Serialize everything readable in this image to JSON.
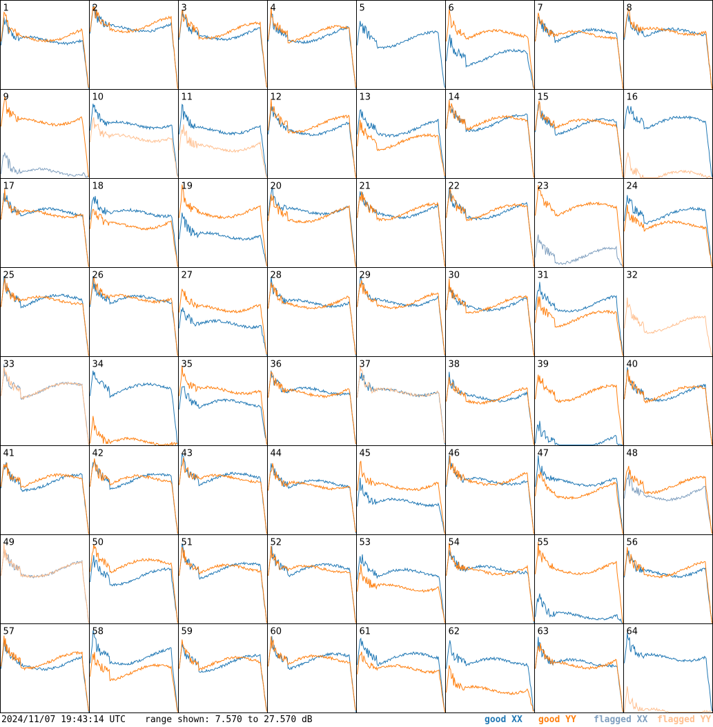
{
  "footer": {
    "timestamp": "2024/11/07 19:43:14 UTC",
    "range": "range shown: 7.570 to 27.570 dB"
  },
  "legend": {
    "good_xx": "good XX",
    "good_yy": "good YY",
    "flagged_xx": "flagged XX",
    "flagged_yy": "flagged YY"
  },
  "colors": {
    "good_xx": "#1f77b4",
    "good_yy": "#ff7f0e",
    "flagged_xx": "#7f9fbf",
    "flagged_yy": "#ffbf8f"
  },
  "chart_data": {
    "type": "line",
    "ylim": [
      7.57,
      27.57
    ],
    "ylabel": "dB",
    "grid_layout": "8x8",
    "series_names": [
      "good XX",
      "good YY",
      "flagged XX",
      "flagged YY"
    ],
    "panels": [
      {
        "id": "1",
        "xx": "good",
        "yy": "good",
        "xx_level": 0.55,
        "yy_level": 0.6
      },
      {
        "id": "2",
        "xx": "good",
        "yy": "good",
        "xx_level": 0.7,
        "yy_level": 0.72
      },
      {
        "id": "3",
        "xx": "good",
        "yy": "good",
        "xx_level": 0.62,
        "yy_level": 0.65
      },
      {
        "id": "4",
        "xx": "good",
        "yy": "good",
        "xx_level": 0.6,
        "yy_level": 0.62
      },
      {
        "id": "5",
        "xx": "good",
        "yy": "none",
        "xx_level": 0.55,
        "yy_level": 0
      },
      {
        "id": "6",
        "xx": "good",
        "yy": "good",
        "xx_level": 0.35,
        "yy_level": 0.6
      },
      {
        "id": "7",
        "xx": "good",
        "yy": "good",
        "xx_level": 0.6,
        "yy_level": 0.6
      },
      {
        "id": "8",
        "xx": "good",
        "yy": "good",
        "xx_level": 0.62,
        "yy_level": 0.65
      },
      {
        "id": "9",
        "xx": "flagged",
        "yy": "good",
        "xx_level": 0.05,
        "yy_level": 0.65
      },
      {
        "id": "10",
        "xx": "good",
        "yy": "flagged",
        "xx_level": 0.6,
        "yy_level": 0.45
      },
      {
        "id": "11",
        "xx": "good",
        "yy": "flagged",
        "xx_level": 0.55,
        "yy_level": 0.35
      },
      {
        "id": "12",
        "xx": "good",
        "yy": "good",
        "xx_level": 0.55,
        "yy_level": 0.6
      },
      {
        "id": "13",
        "xx": "good",
        "yy": "good",
        "xx_level": 0.55,
        "yy_level": 0.4
      },
      {
        "id": "14",
        "xx": "good",
        "yy": "good",
        "xx_level": 0.62,
        "yy_level": 0.62
      },
      {
        "id": "15",
        "xx": "good",
        "yy": "good",
        "xx_level": 0.58,
        "yy_level": 0.6
      },
      {
        "id": "16",
        "xx": "good",
        "yy": "flagged",
        "xx_level": 0.62,
        "yy_level": 0.0
      },
      {
        "id": "17",
        "xx": "good",
        "yy": "good",
        "xx_level": 0.6,
        "yy_level": 0.6
      },
      {
        "id": "18",
        "xx": "good",
        "yy": "good",
        "xx_level": 0.6,
        "yy_level": 0.48
      },
      {
        "id": "19",
        "xx": "good",
        "yy": "good",
        "xx_level": 0.35,
        "yy_level": 0.62
      },
      {
        "id": "20",
        "xx": "good",
        "yy": "good",
        "xx_level": 0.65,
        "yy_level": 0.58
      },
      {
        "id": "21",
        "xx": "good",
        "yy": "good",
        "xx_level": 0.62,
        "yy_level": 0.62
      },
      {
        "id": "22",
        "xx": "good",
        "yy": "good",
        "xx_level": 0.62,
        "yy_level": 0.62
      },
      {
        "id": "23",
        "xx": "flagged",
        "yy": "good",
        "xx_level": 0.12,
        "yy_level": 0.65
      },
      {
        "id": "24",
        "xx": "good",
        "yy": "good",
        "xx_level": 0.58,
        "yy_level": 0.45
      },
      {
        "id": "25",
        "xx": "good",
        "yy": "good",
        "xx_level": 0.62,
        "yy_level": 0.62
      },
      {
        "id": "26",
        "xx": "good",
        "yy": "good",
        "xx_level": 0.62,
        "yy_level": 0.65
      },
      {
        "id": "27",
        "xx": "good",
        "yy": "good",
        "xx_level": 0.35,
        "yy_level": 0.55
      },
      {
        "id": "28",
        "xx": "good",
        "yy": "good",
        "xx_level": 0.6,
        "yy_level": 0.6
      },
      {
        "id": "29",
        "xx": "good",
        "yy": "good",
        "xx_level": 0.62,
        "yy_level": 0.62
      },
      {
        "id": "30",
        "xx": "good",
        "yy": "good",
        "xx_level": 0.58,
        "yy_level": 0.58
      },
      {
        "id": "31",
        "xx": "good",
        "yy": "good",
        "xx_level": 0.58,
        "yy_level": 0.42
      },
      {
        "id": "32",
        "xx": "none",
        "yy": "flagged",
        "xx_level": 0,
        "yy_level": 0.35
      },
      {
        "id": "33",
        "xx": "flagged",
        "yy": "flagged",
        "xx_level": 0.62,
        "yy_level": 0.62
      },
      {
        "id": "34",
        "xx": "good",
        "yy": "good",
        "xx_level": 0.62,
        "yy_level": 0.02
      },
      {
        "id": "35",
        "xx": "good",
        "yy": "good",
        "xx_level": 0.45,
        "yy_level": 0.62
      },
      {
        "id": "36",
        "xx": "good",
        "yy": "good",
        "xx_level": 0.6,
        "yy_level": 0.6
      },
      {
        "id": "37",
        "xx": "good",
        "yy": "flagged",
        "xx_level": 0.6,
        "yy_level": 0.6
      },
      {
        "id": "38",
        "xx": "good",
        "yy": "good",
        "xx_level": 0.55,
        "yy_level": 0.55
      },
      {
        "id": "39",
        "xx": "good",
        "yy": "good",
        "xx_level": 0.02,
        "yy_level": 0.58
      },
      {
        "id": "40",
        "xx": "good",
        "yy": "good",
        "xx_level": 0.58,
        "yy_level": 0.58
      },
      {
        "id": "41",
        "xx": "good",
        "yy": "good",
        "xx_level": 0.58,
        "yy_level": 0.6
      },
      {
        "id": "42",
        "xx": "good",
        "yy": "good",
        "xx_level": 0.6,
        "yy_level": 0.6
      },
      {
        "id": "43",
        "xx": "good",
        "yy": "good",
        "xx_level": 0.62,
        "yy_level": 0.62
      },
      {
        "id": "44",
        "xx": "good",
        "yy": "good",
        "xx_level": 0.55,
        "yy_level": 0.55
      },
      {
        "id": "45",
        "xx": "good",
        "yy": "good",
        "xx_level": 0.35,
        "yy_level": 0.55
      },
      {
        "id": "46",
        "xx": "good",
        "yy": "good",
        "xx_level": 0.6,
        "yy_level": 0.62
      },
      {
        "id": "47",
        "xx": "good",
        "yy": "good",
        "xx_level": 0.6,
        "yy_level": 0.48
      },
      {
        "id": "48",
        "xx": "flagged",
        "yy": "good",
        "xx_level": 0.45,
        "yy_level": 0.55
      },
      {
        "id": "49",
        "xx": "flagged",
        "yy": "flagged",
        "xx_level": 0.6,
        "yy_level": 0.6
      },
      {
        "id": "50",
        "xx": "good",
        "yy": "good",
        "xx_level": 0.52,
        "yy_level": 0.65
      },
      {
        "id": "51",
        "xx": "good",
        "yy": "good",
        "xx_level": 0.6,
        "yy_level": 0.6
      },
      {
        "id": "52",
        "xx": "good",
        "yy": "good",
        "xx_level": 0.6,
        "yy_level": 0.6
      },
      {
        "id": "53",
        "xx": "good",
        "yy": "good",
        "xx_level": 0.55,
        "yy_level": 0.4
      },
      {
        "id": "54",
        "xx": "good",
        "yy": "good",
        "xx_level": 0.6,
        "yy_level": 0.6
      },
      {
        "id": "55",
        "xx": "good",
        "yy": "good",
        "xx_level": 0.08,
        "yy_level": 0.62
      },
      {
        "id": "56",
        "xx": "good",
        "yy": "good",
        "xx_level": 0.58,
        "yy_level": 0.6
      },
      {
        "id": "57",
        "xx": "good",
        "yy": "good",
        "xx_level": 0.55,
        "yy_level": 0.58
      },
      {
        "id": "58",
        "xx": "good",
        "yy": "good",
        "xx_level": 0.62,
        "yy_level": 0.45
      },
      {
        "id": "59",
        "xx": "good",
        "yy": "good",
        "xx_level": 0.55,
        "yy_level": 0.55
      },
      {
        "id": "60",
        "xx": "good",
        "yy": "good",
        "xx_level": 0.58,
        "yy_level": 0.58
      },
      {
        "id": "61",
        "xx": "good",
        "yy": "good",
        "xx_level": 0.6,
        "yy_level": 0.48
      },
      {
        "id": "62",
        "xx": "good",
        "yy": "good",
        "xx_level": 0.55,
        "yy_level": 0.25
      },
      {
        "id": "63",
        "xx": "good",
        "yy": "good",
        "xx_level": 0.55,
        "yy_level": 0.55
      },
      {
        "id": "64",
        "xx": "good",
        "yy": "flagged",
        "xx_level": 0.62,
        "yy_level": 0.0
      }
    ]
  }
}
